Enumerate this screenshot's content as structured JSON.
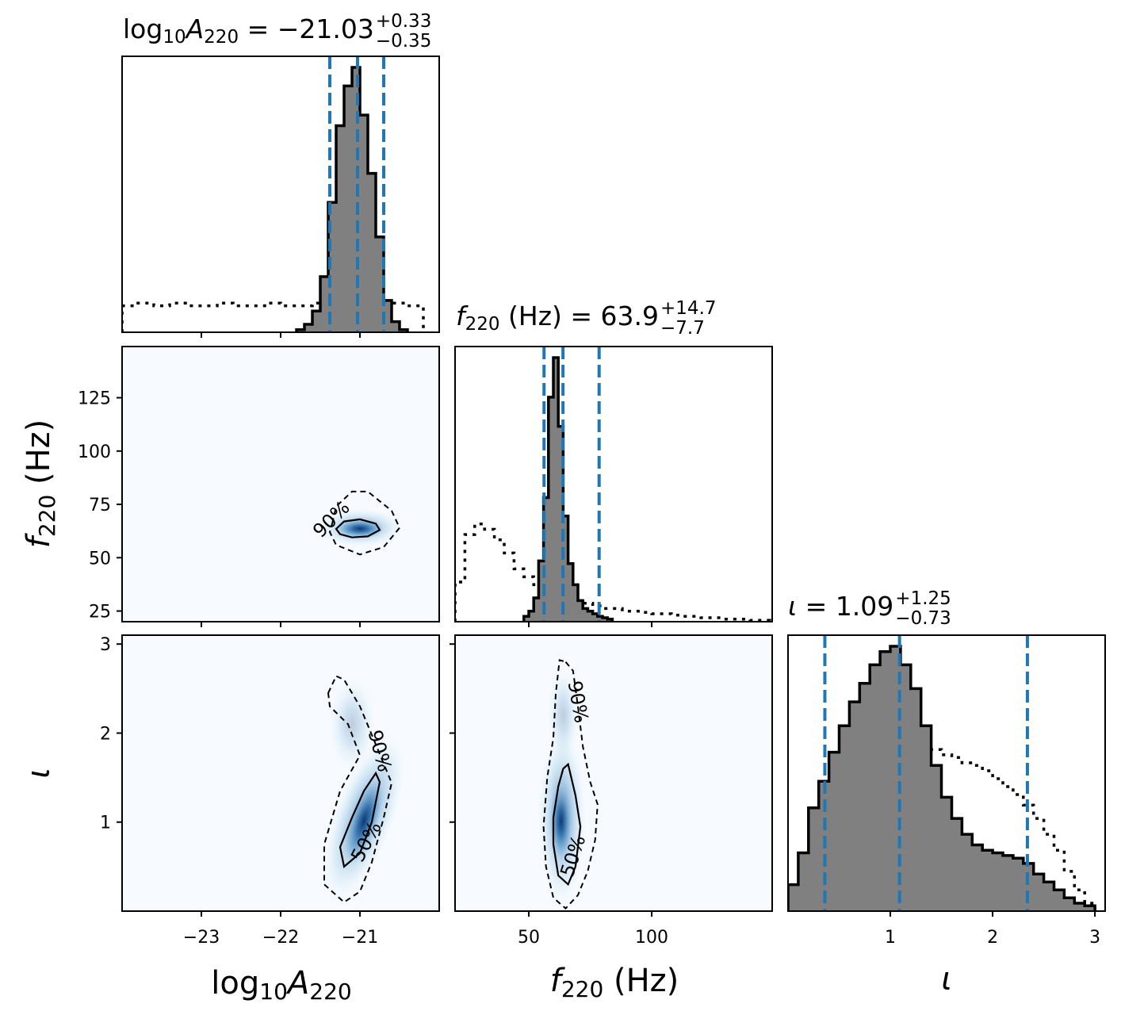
{
  "chart_data": {
    "type": "corner",
    "parameters": [
      {
        "key": "logA",
        "label_main": "log",
        "label_sub": "10",
        "label_sym": "A",
        "label_sym_sub": "220",
        "label_unit": ""
      },
      {
        "key": "f",
        "label_main": "",
        "label_sub": "",
        "label_sym": "f",
        "label_sym_sub": "220",
        "label_unit": " (Hz)"
      },
      {
        "key": "iota",
        "label_main": "",
        "label_sub": "",
        "label_sym": "ι",
        "label_sym_sub": "",
        "label_unit": ""
      }
    ],
    "diag_titles": [
      {
        "prefix": "log",
        "prefix_sub": "10",
        "sym": "A",
        "sym_sub": "220",
        "unit": "",
        "eq": " = ",
        "median": "−21.03",
        "plus": "+0.33",
        "minus": "−0.35"
      },
      {
        "prefix": "",
        "prefix_sub": "",
        "sym": "f",
        "sym_sub": "220",
        "unit": " (Hz)",
        "eq": " = ",
        "median": "63.9",
        "plus": "+14.7",
        "minus": "−7.7"
      },
      {
        "prefix": "",
        "prefix_sub": "",
        "sym": "ι",
        "sym_sub": "",
        "unit": "",
        "eq": " = ",
        "median": "1.09",
        "plus": "+1.25",
        "minus": "−0.73"
      }
    ],
    "ranges": {
      "logA": [
        -24.0,
        -20.0
      ],
      "f": [
        20,
        149
      ],
      "iota": [
        0.0,
        3.1
      ]
    },
    "ticks": {
      "logA": {
        "values": [
          -23,
          -22,
          -21
        ],
        "labels": [
          "−23",
          "−22",
          "−21"
        ]
      },
      "f_x": {
        "values": [
          50,
          100
        ],
        "labels": [
          "50",
          "100"
        ]
      },
      "f_y": {
        "values": [
          25,
          50,
          75,
          100,
          125
        ],
        "labels": [
          "25",
          "50",
          "75",
          "100",
          "125"
        ]
      },
      "iota": {
        "values": [
          1,
          2,
          3
        ],
        "labels": [
          "1",
          "2",
          "3"
        ]
      }
    },
    "quantiles": {
      "logA": [
        -21.38,
        -21.03,
        -20.7
      ],
      "f": [
        56.2,
        63.9,
        78.6
      ],
      "iota": [
        0.36,
        1.09,
        2.34
      ]
    },
    "posterior_hist": {
      "logA": {
        "edges_start": -21.8,
        "bin": 0.1,
        "values": [
          0.01,
          0.03,
          0.08,
          0.21,
          0.49,
          0.78,
          0.93,
          1.0,
          0.82,
          0.6,
          0.36,
          0.12,
          0.04,
          0.01
        ]
      },
      "f": {
        "edges_start": 48,
        "bin": 2,
        "values": [
          0.02,
          0.04,
          0.09,
          0.23,
          0.47,
          0.85,
          1.0,
          0.74,
          0.4,
          0.22,
          0.14,
          0.08,
          0.05,
          0.04,
          0.03,
          0.02,
          0.015,
          0.01
        ]
      },
      "iota": {
        "edges_start": 0.0,
        "bin": 0.1,
        "values": [
          0.1,
          0.22,
          0.39,
          0.49,
          0.6,
          0.7,
          0.79,
          0.86,
          0.93,
          0.98,
          1.0,
          0.93,
          0.84,
          0.7,
          0.55,
          0.43,
          0.35,
          0.29,
          0.25,
          0.23,
          0.22,
          0.21,
          0.2,
          0.18,
          0.14,
          0.11,
          0.08,
          0.05,
          0.03,
          0.02
        ]
      }
    },
    "prior_hist": {
      "logA": {
        "edges_start": -24.0,
        "bin": 0.2,
        "values": [
          0.1,
          0.11,
          0.1,
          0.11,
          0.1,
          0.1,
          0.11,
          0.1,
          0.1,
          0.11,
          0.1,
          0.1,
          0.11,
          0.12,
          0.11,
          0.1,
          0.1,
          0.11,
          0.1
        ]
      },
      "f": {
        "edges_start": 20,
        "bin": 4,
        "values": [
          0.15,
          0.33,
          0.37,
          0.35,
          0.31,
          0.26,
          0.2,
          0.17,
          0.14,
          0.12,
          0.1,
          0.09,
          0.08,
          0.07,
          0.06,
          0.05,
          0.05,
          0.04,
          0.04,
          0.035,
          0.03,
          0.03,
          0.025,
          0.02,
          0.02,
          0.015,
          0.015,
          0.01,
          0.01,
          0.01,
          0.005,
          0.005
        ]
      },
      "iota": {
        "edges_start": 0.0,
        "bin": 0.1,
        "values": [
          0.05,
          0.09,
          0.18,
          0.24,
          0.28,
          0.3,
          0.33,
          0.37,
          0.42,
          0.49,
          0.55,
          0.56,
          0.6,
          0.63,
          0.61,
          0.59,
          0.58,
          0.56,
          0.55,
          0.53,
          0.5,
          0.47,
          0.44,
          0.4,
          0.35,
          0.29,
          0.23,
          0.15,
          0.08,
          0.03
        ]
      }
    },
    "contour_labels": {
      "c90": "90%",
      "c50": "50%"
    },
    "colors": {
      "posterior_fill": "#808080",
      "posterior_edge": "#000000",
      "quantile_line": "#1f77b4",
      "density": "#08306b",
      "density_bg": "#f7fbff"
    }
  }
}
